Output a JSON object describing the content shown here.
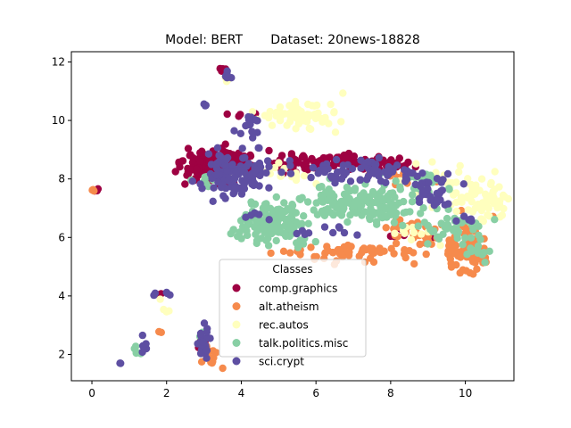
{
  "chart_data": {
    "type": "scatter",
    "title": "Model: BERT       Dataset: 20news-18828",
    "xlabel": "",
    "ylabel": "",
    "xlim": [
      -0.55,
      11.3
    ],
    "ylim": [
      1.1,
      12.35
    ],
    "x_ticks": [
      0,
      2,
      4,
      6,
      8,
      10
    ],
    "y_ticks": [
      2,
      4,
      6,
      8,
      10,
      12
    ],
    "grid": false,
    "legend": {
      "title": "Classes",
      "placement": "lower-center"
    },
    "series": [
      {
        "name": "comp.graphics",
        "color": "#9e0142",
        "clusters": [
          {
            "x": 3.3,
            "y": 8.45,
            "sx": 0.45,
            "sy": 0.3,
            "n": 160
          },
          {
            "x": 6.9,
            "y": 8.55,
            "sx": 0.9,
            "sy": 0.12,
            "n": 90
          },
          {
            "x": 5.2,
            "y": 8.5,
            "sx": 0.5,
            "sy": 0.15,
            "n": 40
          },
          {
            "x": 3.5,
            "y": 11.7,
            "sx": 0.04,
            "sy": 0.05,
            "n": 6
          },
          {
            "x": 4.1,
            "y": 10.1,
            "sx": 0.15,
            "sy": 0.1,
            "n": 5
          },
          {
            "x": 0.1,
            "y": 7.6,
            "sx": 0.03,
            "sy": 0.03,
            "n": 3
          },
          {
            "x": 2.9,
            "y": 2.3,
            "sx": 0.08,
            "sy": 0.1,
            "n": 6
          },
          {
            "x": 1.8,
            "y": 4.1,
            "sx": 0.06,
            "sy": 0.04,
            "n": 2
          },
          {
            "x": 8.3,
            "y": 6.1,
            "sx": 0.4,
            "sy": 0.15,
            "n": 8
          }
        ]
      },
      {
        "name": "alt.atheism",
        "color": "#f68a4c",
        "clusters": [
          {
            "x": 10.0,
            "y": 5.6,
            "sx": 0.3,
            "sy": 0.4,
            "n": 80
          },
          {
            "x": 7.1,
            "y": 5.45,
            "sx": 0.9,
            "sy": 0.15,
            "n": 60
          },
          {
            "x": 8.8,
            "y": 6.2,
            "sx": 0.7,
            "sy": 0.25,
            "n": 35
          },
          {
            "x": 3.1,
            "y": 1.9,
            "sx": 0.15,
            "sy": 0.2,
            "n": 15
          },
          {
            "x": 0.05,
            "y": 7.6,
            "sx": 0.03,
            "sy": 0.03,
            "n": 3
          },
          {
            "x": 1.85,
            "y": 2.8,
            "sx": 0.05,
            "sy": 0.1,
            "n": 2
          },
          {
            "x": 8.2,
            "y": 8.0,
            "sx": 0.5,
            "sy": 0.2,
            "n": 10
          }
        ]
      },
      {
        "name": "rec.autos",
        "color": "#ffffbe",
        "clusters": [
          {
            "x": 5.5,
            "y": 10.2,
            "sx": 0.55,
            "sy": 0.25,
            "n": 80
          },
          {
            "x": 10.5,
            "y": 7.3,
            "sx": 0.4,
            "sy": 0.3,
            "n": 70
          },
          {
            "x": 9.2,
            "y": 7.9,
            "sx": 0.4,
            "sy": 0.3,
            "n": 25
          },
          {
            "x": 5.2,
            "y": 8.1,
            "sx": 0.5,
            "sy": 0.2,
            "n": 15
          },
          {
            "x": 3.6,
            "y": 11.4,
            "sx": 0.05,
            "sy": 0.05,
            "n": 3
          },
          {
            "x": 1.9,
            "y": 3.6,
            "sx": 0.08,
            "sy": 0.2,
            "n": 4
          },
          {
            "x": 8.8,
            "y": 6.1,
            "sx": 0.4,
            "sy": 0.15,
            "n": 12
          }
        ]
      },
      {
        "name": "talk.politics.misc",
        "color": "#88cfa4",
        "clusters": [
          {
            "x": 4.9,
            "y": 6.5,
            "sx": 0.45,
            "sy": 0.4,
            "n": 140
          },
          {
            "x": 7.5,
            "y": 7.2,
            "sx": 0.8,
            "sy": 0.35,
            "n": 160
          },
          {
            "x": 9.7,
            "y": 6.3,
            "sx": 0.35,
            "sy": 0.35,
            "n": 40
          },
          {
            "x": 8.6,
            "y": 7.9,
            "sx": 0.4,
            "sy": 0.2,
            "n": 20
          },
          {
            "x": 3.2,
            "y": 8.0,
            "sx": 0.3,
            "sy": 0.1,
            "n": 12
          },
          {
            "x": 1.25,
            "y": 2.05,
            "sx": 0.1,
            "sy": 0.1,
            "n": 5
          },
          {
            "x": 2.95,
            "y": 2.5,
            "sx": 0.05,
            "sy": 0.3,
            "n": 6
          },
          {
            "x": 10.3,
            "y": 5.5,
            "sx": 0.2,
            "sy": 0.2,
            "n": 10
          }
        ]
      },
      {
        "name": "sci.crypt",
        "color": "#5e4fa2",
        "clusters": [
          {
            "x": 3.8,
            "y": 8.2,
            "sx": 0.45,
            "sy": 0.4,
            "n": 110
          },
          {
            "x": 7.2,
            "y": 8.3,
            "sx": 0.8,
            "sy": 0.2,
            "n": 70
          },
          {
            "x": 9.2,
            "y": 7.6,
            "sx": 0.35,
            "sy": 0.35,
            "n": 35
          },
          {
            "x": 3.6,
            "y": 11.55,
            "sx": 0.04,
            "sy": 0.1,
            "n": 6
          },
          {
            "x": 3.0,
            "y": 10.55,
            "sx": 0.03,
            "sy": 0.03,
            "n": 3
          },
          {
            "x": 4.2,
            "y": 9.7,
            "sx": 0.2,
            "sy": 0.3,
            "n": 15
          },
          {
            "x": 3.0,
            "y": 2.5,
            "sx": 0.08,
            "sy": 0.4,
            "n": 20
          },
          {
            "x": 1.4,
            "y": 2.3,
            "sx": 0.06,
            "sy": 0.15,
            "n": 6
          },
          {
            "x": 1.9,
            "y": 4.1,
            "sx": 0.12,
            "sy": 0.04,
            "n": 5
          },
          {
            "x": 0.75,
            "y": 1.7,
            "sx": 0.02,
            "sy": 0.02,
            "n": 2
          },
          {
            "x": 4.5,
            "y": 6.8,
            "sx": 0.2,
            "sy": 0.1,
            "n": 6
          },
          {
            "x": 10.1,
            "y": 6.6,
            "sx": 0.15,
            "sy": 0.1,
            "n": 5
          },
          {
            "x": 6.7,
            "y": 6.2,
            "sx": 0.3,
            "sy": 0.15,
            "n": 6
          },
          {
            "x": 5.6,
            "y": 6.1,
            "sx": 0.2,
            "sy": 0.1,
            "n": 4
          }
        ]
      }
    ]
  }
}
